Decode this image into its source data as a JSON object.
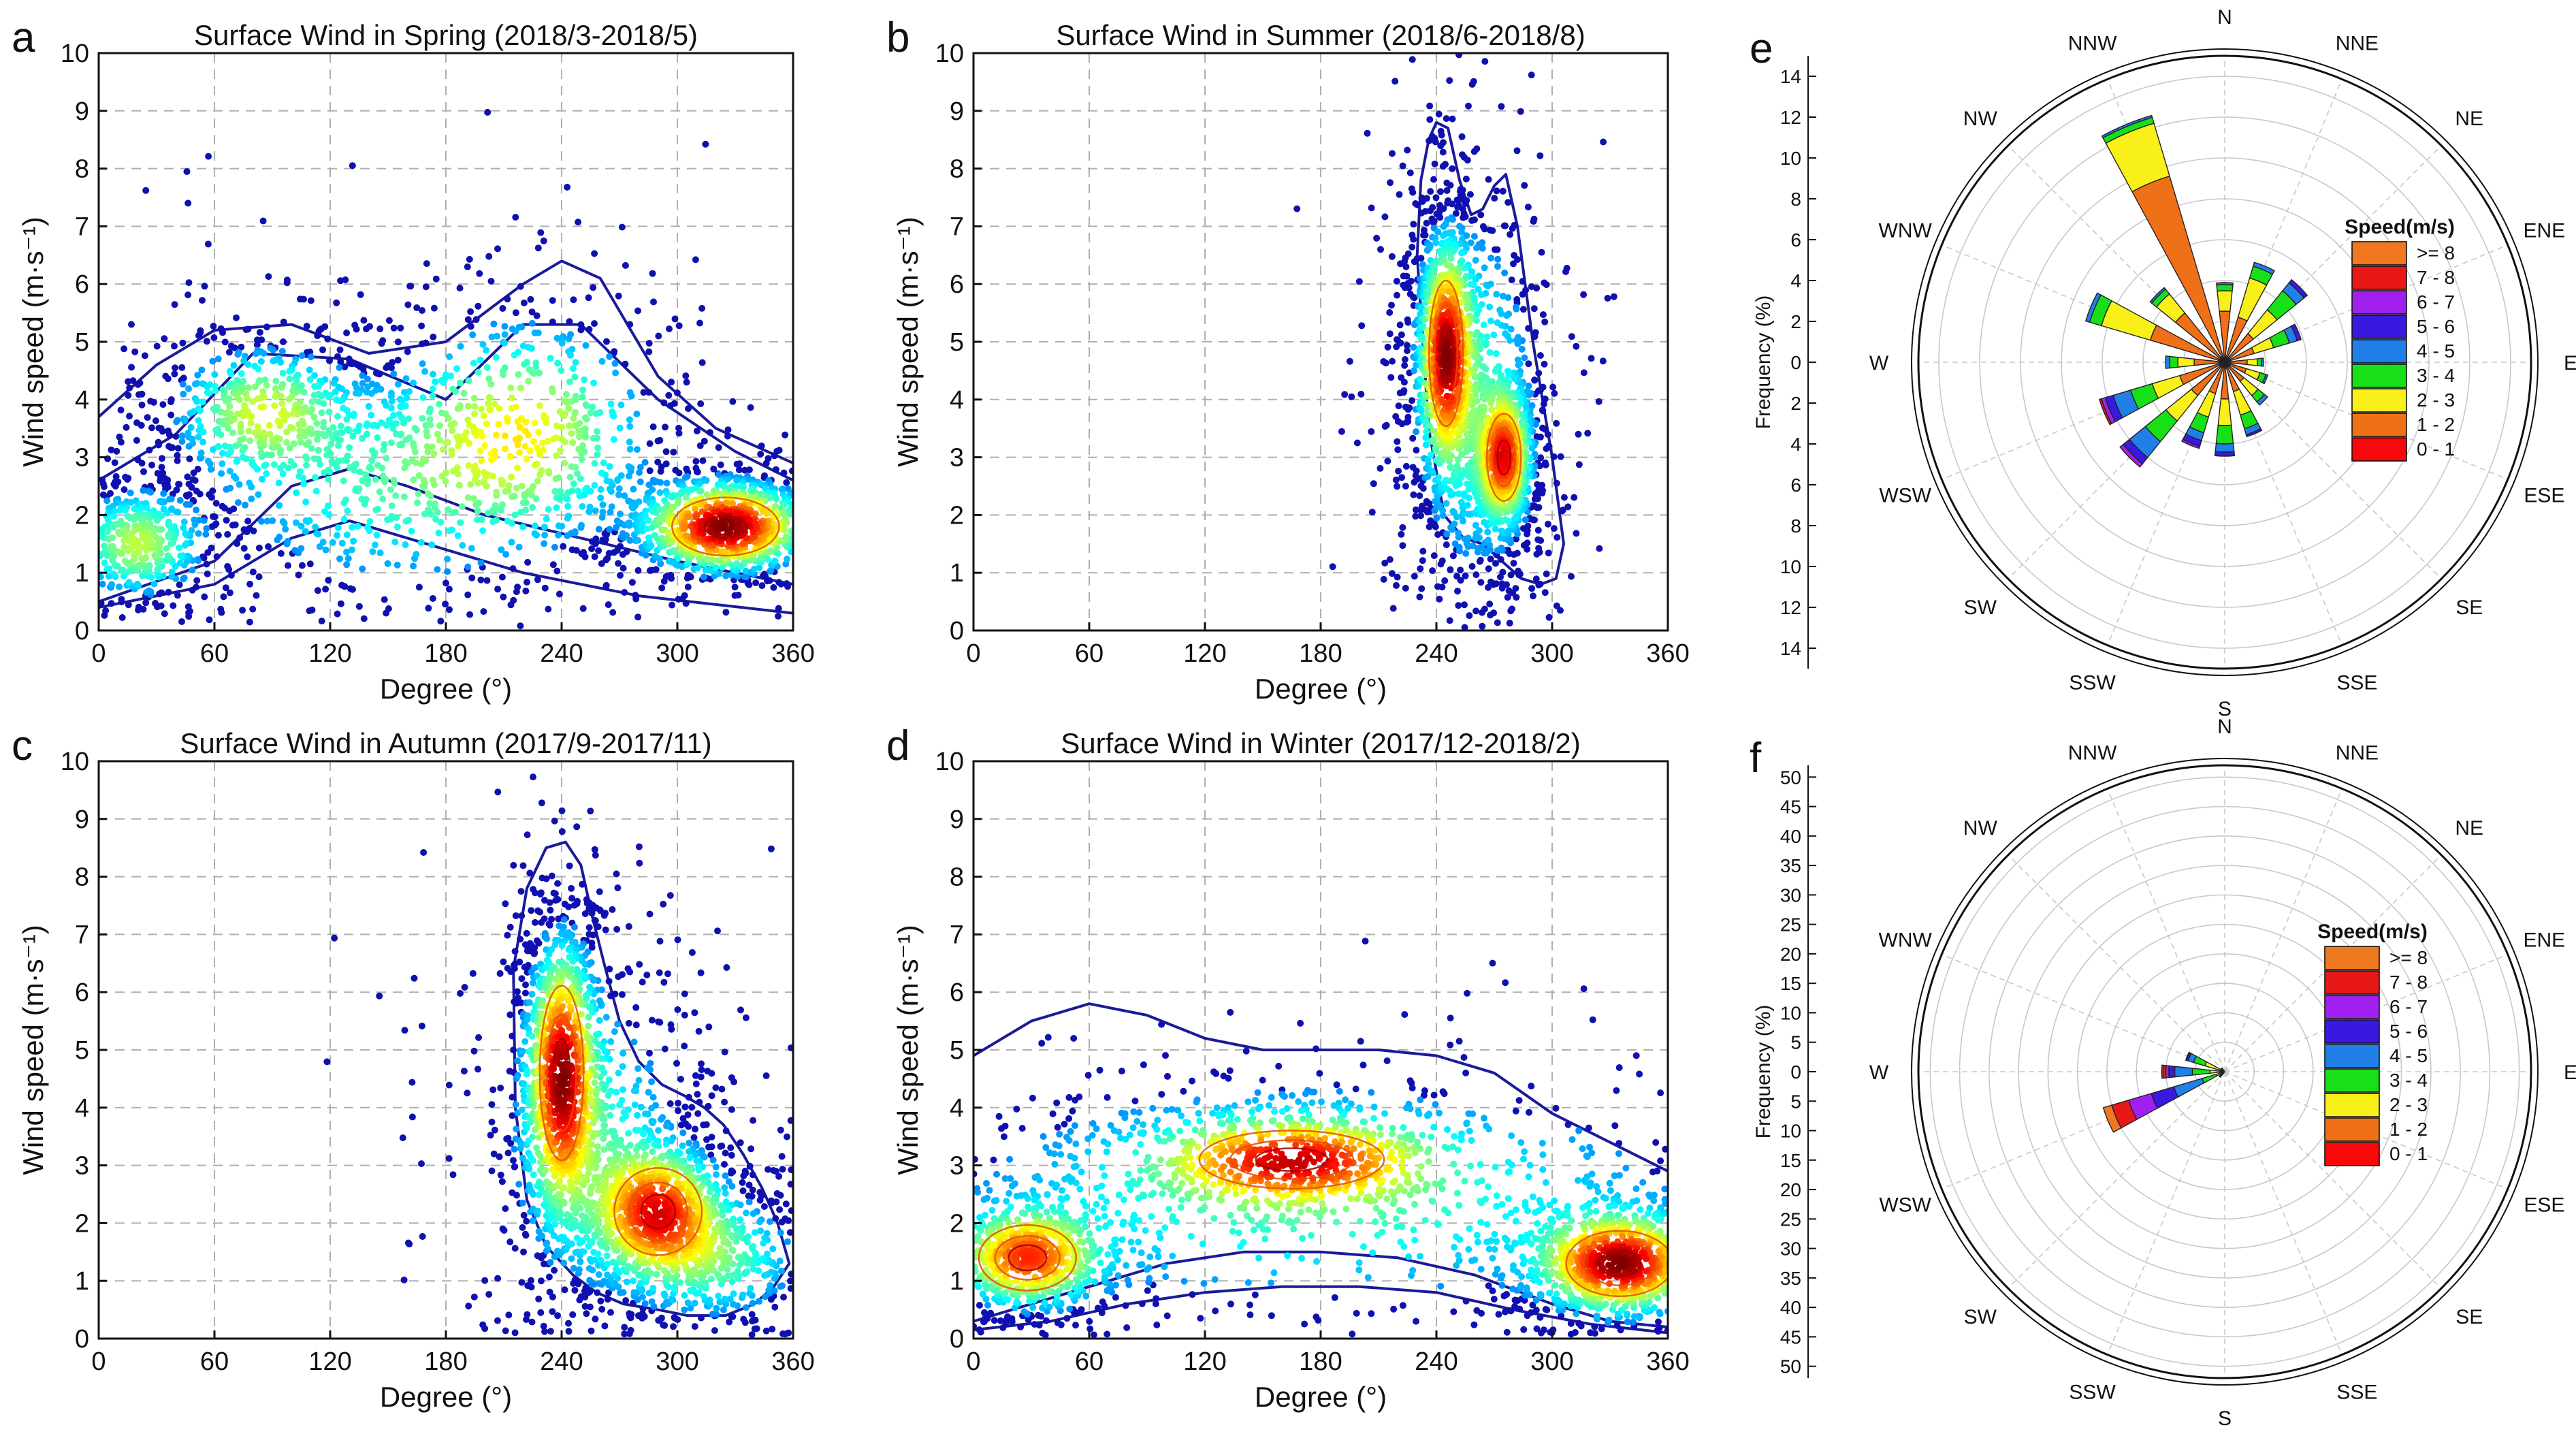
{
  "figure": {
    "background": "#ffffff",
    "point_color": "#1010b0",
    "grid_color": "#b0b0b0"
  },
  "chart_data": [
    {
      "panel": "a",
      "type": "scatter",
      "title": "Surface Wind in Spring (2018/3-2018/5)",
      "xlabel": "Degree (°)",
      "ylabel": "Wind speed (m·s⁻¹)",
      "xlim": [
        0,
        360
      ],
      "ylim": [
        0,
        10
      ],
      "xticks": [
        0,
        60,
        120,
        180,
        240,
        300,
        360
      ],
      "yticks": [
        0,
        1,
        2,
        3,
        4,
        5,
        6,
        7,
        8,
        9,
        10
      ],
      "grid": true,
      "density_clusters": [
        {
          "x": 325,
          "y": 1.8,
          "sx": 22,
          "sy": 0.4,
          "w": 1.0
        },
        {
          "x": 220,
          "y": 3.5,
          "sx": 35,
          "sy": 1.0,
          "w": 0.45
        },
        {
          "x": 85,
          "y": 3.8,
          "sx": 25,
          "sy": 0.6,
          "w": 0.4
        },
        {
          "x": 20,
          "y": 1.5,
          "sx": 18,
          "sy": 0.5,
          "w": 0.4
        },
        {
          "x": 150,
          "y": 2.5,
          "sx": 50,
          "sy": 1.0,
          "w": 0.25
        }
      ],
      "outer_contours": [
        {
          "x": [
            0,
            30,
            60,
            100,
            140,
            180,
            220,
            240,
            260,
            290,
            320,
            360
          ],
          "y": [
            3.7,
            4.6,
            5.2,
            5.3,
            4.8,
            5.0,
            6.0,
            6.4,
            6.1,
            4.4,
            3.5,
            2.9
          ]
        },
        {
          "x": [
            0,
            40,
            80,
            130,
            180,
            220,
            250,
            290,
            330,
            360
          ],
          "y": [
            2.6,
            3.4,
            4.8,
            4.7,
            4.0,
            5.3,
            5.3,
            4.0,
            3.1,
            2.6
          ]
        },
        {
          "x": [
            0,
            60,
            100,
            130,
            160,
            200,
            250,
            300,
            360
          ],
          "y": [
            0.5,
            1.2,
            2.5,
            2.8,
            2.5,
            2.0,
            1.6,
            1.2,
            0.8
          ]
        },
        {
          "x": [
            0,
            60,
            100,
            130,
            160,
            220,
            280,
            360
          ],
          "y": [
            0.4,
            0.8,
            1.6,
            1.9,
            1.6,
            1.0,
            0.6,
            0.3
          ]
        }
      ]
    },
    {
      "panel": "b",
      "type": "scatter",
      "title": "Surface Wind in Summer (2018/6-2018/8)",
      "xlabel": "Degree (°)",
      "ylabel": "Wind speed (m·s⁻¹)",
      "xlim": [
        0,
        360
      ],
      "ylim": [
        0,
        10
      ],
      "xticks": [
        0,
        60,
        120,
        180,
        240,
        300,
        360
      ],
      "yticks": [
        0,
        1,
        2,
        3,
        4,
        5,
        6,
        7,
        8,
        9,
        10
      ],
      "grid": true,
      "density_clusters": [
        {
          "x": 245,
          "y": 4.8,
          "sx": 7,
          "sy": 1.0,
          "w": 1.0
        },
        {
          "x": 275,
          "y": 3.0,
          "sx": 7,
          "sy": 0.6,
          "w": 0.85
        },
        {
          "x": 260,
          "y": 4.0,
          "sx": 18,
          "sy": 1.8,
          "w": 0.3
        }
      ],
      "outer_contours": [
        {
          "x": [
            230,
            232,
            236,
            240,
            246,
            252,
            258,
            264,
            270,
            276,
            282,
            290,
            300,
            306,
            302,
            294,
            284,
            274,
            264,
            254,
            244,
            236,
            230
          ],
          "y": [
            6.5,
            7.8,
            8.5,
            8.8,
            8.7,
            7.8,
            7.2,
            7.3,
            7.7,
            7.9,
            7.0,
            5.0,
            3.0,
            1.5,
            0.9,
            0.8,
            0.9,
            1.2,
            1.5,
            1.6,
            2.0,
            3.5,
            6.5
          ]
        }
      ]
    },
    {
      "panel": "c",
      "type": "scatter",
      "title": "Surface Wind in Autumn (2017/9-2017/11)",
      "xlabel": "Degree (°)",
      "ylabel": "Wind speed (m·s⁻¹)",
      "xlim": [
        0,
        360
      ],
      "ylim": [
        0,
        10
      ],
      "xticks": [
        0,
        60,
        120,
        180,
        240,
        300,
        360
      ],
      "yticks": [
        0,
        1,
        2,
        3,
        4,
        5,
        6,
        7,
        8,
        9,
        10
      ],
      "grid": true,
      "density_clusters": [
        {
          "x": 240,
          "y": 4.6,
          "sx": 9,
          "sy": 1.2,
          "w": 1.0
        },
        {
          "x": 290,
          "y": 2.2,
          "sx": 18,
          "sy": 0.6,
          "w": 0.9
        },
        {
          "x": 320,
          "y": 1.4,
          "sx": 25,
          "sy": 0.6,
          "w": 0.35
        },
        {
          "x": 255,
          "y": 3.5,
          "sx": 25,
          "sy": 1.5,
          "w": 0.3
        }
      ],
      "outer_contours": [
        {
          "x": [
            215,
            222,
            232,
            242,
            250,
            256,
            262,
            270,
            280,
            292,
            304,
            314,
            324,
            334,
            344,
            352,
            358,
            350,
            340,
            325,
            305,
            290,
            272,
            258,
            246,
            232,
            222,
            216,
            215
          ],
          "y": [
            6.4,
            7.8,
            8.5,
            8.6,
            8.2,
            7.3,
            6.5,
            5.5,
            4.8,
            4.4,
            4.2,
            4.0,
            3.7,
            3.2,
            2.6,
            2.0,
            1.3,
            0.9,
            0.6,
            0.4,
            0.4,
            0.5,
            0.6,
            0.8,
            1.1,
            1.6,
            2.4,
            4.0,
            6.4
          ]
        }
      ]
    },
    {
      "panel": "d",
      "type": "scatter",
      "title": "Surface Wind in Winter (2017/12-2018/2)",
      "xlabel": "Degree (°)",
      "ylabel": "Wind speed (m·s⁻¹)",
      "xlim": [
        0,
        360
      ],
      "ylim": [
        0,
        10
      ],
      "xticks": [
        0,
        60,
        120,
        180,
        240,
        300,
        360
      ],
      "yticks": [
        0,
        1,
        2,
        3,
        4,
        5,
        6,
        7,
        8,
        9,
        10
      ],
      "grid": true,
      "density_clusters": [
        {
          "x": 335,
          "y": 1.3,
          "sx": 22,
          "sy": 0.45,
          "w": 1.0
        },
        {
          "x": 28,
          "y": 1.4,
          "sx": 20,
          "sy": 0.45,
          "w": 0.75
        },
        {
          "x": 165,
          "y": 3.1,
          "sx": 38,
          "sy": 0.4,
          "w": 0.7
        },
        {
          "x": 180,
          "y": 2.5,
          "sx": 110,
          "sy": 1.1,
          "w": 0.3
        }
      ],
      "outer_contours": [
        {
          "x": [
            0,
            30,
            60,
            90,
            120,
            150,
            180,
            210,
            240,
            270,
            300,
            330,
            360
          ],
          "y": [
            4.9,
            5.5,
            5.8,
            5.6,
            5.2,
            5.0,
            5.0,
            5.0,
            4.9,
            4.6,
            3.9,
            3.4,
            2.9
          ]
        },
        {
          "x": [
            0,
            30,
            60,
            100,
            140,
            180,
            220,
            260,
            300,
            330,
            360
          ],
          "y": [
            0.3,
            0.6,
            0.9,
            1.3,
            1.5,
            1.5,
            1.4,
            1.1,
            0.6,
            0.3,
            0.2
          ]
        },
        {
          "x": [
            0,
            40,
            80,
            120,
            160,
            200,
            240,
            280,
            320,
            360
          ],
          "y": [
            0.15,
            0.3,
            0.6,
            0.8,
            0.9,
            0.9,
            0.8,
            0.5,
            0.25,
            0.1
          ]
        }
      ]
    },
    {
      "panel": "e",
      "type": "polar_bar",
      "title": "",
      "ylabel": "Frequency (%)",
      "rmax": 15,
      "ring_step": 2,
      "radial_ticks": [
        0,
        2,
        4,
        6,
        8,
        10,
        12,
        14
      ],
      "directions": [
        "N",
        "NNE",
        "NE",
        "ENE",
        "E",
        "ESE",
        "SE",
        "SSE",
        "S",
        "SSW",
        "SW",
        "WSW",
        "W",
        "WNW",
        "NW",
        "NNW"
      ],
      "legend_title": "Speed(m/s)",
      "legend_labels": [
        ">= 8",
        "7 - 8",
        "6 - 7",
        "5 - 6",
        "4 - 5",
        "3 - 4",
        "2 - 3",
        "1 - 2",
        "0 - 1"
      ],
      "legend_colors": [
        "#f07820",
        "#e81818",
        "#a020f0",
        "#3a18e0",
        "#2080e8",
        "#18e018",
        "#f8f018",
        "#f07018",
        "#f80808"
      ],
      "bins": [
        "0-1",
        "1-2",
        "2-3",
        "3-4",
        "4-5",
        "5-6",
        "6-7",
        "7-8",
        ">=8"
      ],
      "bin_colors": [
        "#f80808",
        "#f07018",
        "#f8f018",
        "#18e018",
        "#2080e8",
        "#3a18e0",
        "#a020f0",
        "#e81818",
        "#f07820"
      ],
      "series": [
        {
          "direction": "N",
          "values": [
            0.3,
            2.2,
            1.0,
            0.3,
            0.1,
            0.0,
            0.0,
            0.0,
            0.0
          ]
        },
        {
          "direction": "NNE",
          "values": [
            0.3,
            2.0,
            2.0,
            0.6,
            0.2,
            0.0,
            0.0,
            0.0,
            0.0
          ]
        },
        {
          "direction": "NE",
          "values": [
            0.3,
            1.5,
            1.5,
            1.2,
            0.5,
            0.2,
            0.0,
            0.0,
            0.0
          ]
        },
        {
          "direction": "ENE",
          "values": [
            0.3,
            1.2,
            1.0,
            0.8,
            0.4,
            0.2,
            0.0,
            0.0,
            0.0
          ]
        },
        {
          "direction": "E",
          "values": [
            0.3,
            0.8,
            0.5,
            0.2,
            0.1,
            0.0,
            0.0,
            0.0,
            0.0
          ]
        },
        {
          "direction": "ESE",
          "values": [
            0.3,
            0.8,
            0.7,
            0.3,
            0.1,
            0.0,
            0.0,
            0.0,
            0.0
          ]
        },
        {
          "direction": "SE",
          "values": [
            0.3,
            0.9,
            0.9,
            0.4,
            0.2,
            0.0,
            0.0,
            0.0,
            0.0
          ]
        },
        {
          "direction": "SSE",
          "values": [
            0.3,
            1.2,
            1.2,
            0.7,
            0.3,
            0.1,
            0.0,
            0.0,
            0.0
          ]
        },
        {
          "direction": "S",
          "values": [
            0.3,
            1.5,
            1.3,
            0.9,
            0.4,
            0.2,
            0.0,
            0.0,
            0.0
          ]
        },
        {
          "direction": "SSW",
          "values": [
            0.3,
            1.3,
            1.2,
            0.8,
            0.4,
            0.3,
            0.1,
            0.0,
            0.0
          ]
        },
        {
          "direction": "SW",
          "values": [
            0.3,
            1.8,
            1.6,
            1.3,
            1.0,
            0.4,
            0.2,
            0.0,
            0.0
          ]
        },
        {
          "direction": "WSW",
          "values": [
            0.3,
            2.0,
            1.4,
            1.1,
            0.9,
            0.4,
            0.2,
            0.1,
            0.0
          ]
        },
        {
          "direction": "W",
          "values": [
            0.3,
            1.2,
            0.8,
            0.4,
            0.2,
            0.0,
            0.0,
            0.0,
            0.0
          ]
        },
        {
          "direction": "WNW",
          "values": [
            0.3,
            3.5,
            2.5,
            0.6,
            0.2,
            0.0,
            0.0,
            0.0,
            0.0
          ]
        },
        {
          "direction": "NW",
          "values": [
            0.3,
            2.8,
            1.2,
            0.3,
            0.1,
            0.0,
            0.0,
            0.0,
            0.0
          ]
        },
        {
          "direction": "NNW",
          "values": [
            0.3,
            9.2,
            2.7,
            0.3,
            0.1,
            0.0,
            0.0,
            0.0,
            0.0
          ]
        }
      ]
    },
    {
      "panel": "f",
      "type": "polar_bar",
      "title": "",
      "ylabel": "Frequency (%)",
      "rmax": 52,
      "ring_step": 5,
      "radial_ticks": [
        0,
        5,
        10,
        15,
        20,
        25,
        30,
        35,
        40,
        45,
        50
      ],
      "directions": [
        "N",
        "NNE",
        "NE",
        "ENE",
        "E",
        "ESE",
        "SE",
        "SSE",
        "S",
        "SSW",
        "SW",
        "WSW",
        "W",
        "WNW",
        "NW",
        "NNW"
      ],
      "legend_title": "Speed(m/s)",
      "legend_labels": [
        ">= 8",
        "7 - 8",
        "6 - 7",
        "5 - 6",
        "4 - 5",
        "3 - 4",
        "2 - 3",
        "1 - 2",
        "0 - 1"
      ],
      "legend_colors": [
        "#f07820",
        "#e81818",
        "#a020f0",
        "#3a18e0",
        "#2080e8",
        "#18e018",
        "#f8f018",
        "#f07018",
        "#f80808"
      ],
      "bins": [
        "0-1",
        "1-2",
        "2-3",
        "3-4",
        "4-5",
        "5-6",
        "6-7",
        "7-8",
        ">=8"
      ],
      "bin_colors": [
        "#f80808",
        "#f07018",
        "#f8f018",
        "#18e018",
        "#2080e8",
        "#3a18e0",
        "#a020f0",
        "#e81818",
        "#f07820"
      ],
      "series": [
        {
          "direction": "N",
          "values": [
            0,
            0,
            0,
            0,
            0,
            0,
            0,
            0,
            0
          ]
        },
        {
          "direction": "NNE",
          "values": [
            0,
            0,
            0,
            0,
            0,
            0,
            0,
            0,
            0
          ]
        },
        {
          "direction": "NE",
          "values": [
            0,
            0,
            0,
            0,
            0,
            0,
            0,
            0,
            0
          ]
        },
        {
          "direction": "ENE",
          "values": [
            0,
            0,
            0,
            0,
            0,
            0,
            0,
            0,
            0
          ]
        },
        {
          "direction": "E",
          "values": [
            0,
            0,
            0,
            0,
            0,
            0,
            0,
            0,
            0
          ]
        },
        {
          "direction": "ESE",
          "values": [
            0,
            0,
            0,
            0,
            0,
            0,
            0,
            0,
            0
          ]
        },
        {
          "direction": "SE",
          "values": [
            0,
            0,
            0,
            0,
            0,
            0,
            0,
            0,
            0
          ]
        },
        {
          "direction": "SSE",
          "values": [
            0,
            0,
            0,
            0,
            0,
            0,
            0,
            0,
            0
          ]
        },
        {
          "direction": "S",
          "values": [
            0,
            0,
            0,
            0,
            0,
            0,
            0,
            0,
            0
          ]
        },
        {
          "direction": "SSW",
          "values": [
            0,
            0,
            0,
            0,
            0,
            0,
            0,
            0,
            0
          ]
        },
        {
          "direction": "SW",
          "values": [
            0,
            0.3,
            0.3,
            0.2,
            0.2,
            0.1,
            0.1,
            0.0,
            0.0
          ]
        },
        {
          "direction": "WSW",
          "values": [
            0,
            0.5,
            1.0,
            2.5,
            5.0,
            4.0,
            4.0,
            3.0,
            1.5
          ]
        },
        {
          "direction": "W",
          "values": [
            0,
            0.5,
            2.0,
            3.0,
            3.0,
            1.0,
            0.5,
            0.5,
            0.2
          ]
        },
        {
          "direction": "WNW",
          "values": [
            0,
            0.5,
            3.0,
            2.0,
            1.0,
            0.3,
            0.1,
            0.0,
            0.0
          ]
        },
        {
          "direction": "NW",
          "values": [
            0,
            0.2,
            0.3,
            0.2,
            0.1,
            0.0,
            0.0,
            0.0,
            0.0
          ]
        },
        {
          "direction": "NNW",
          "values": [
            0,
            0,
            0,
            0,
            0,
            0,
            0,
            0,
            0
          ]
        }
      ]
    }
  ]
}
